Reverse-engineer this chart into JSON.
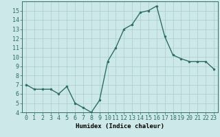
{
  "x": [
    0,
    1,
    2,
    3,
    4,
    5,
    6,
    7,
    8,
    9,
    10,
    11,
    12,
    13,
    14,
    15,
    16,
    17,
    18,
    19,
    20,
    21,
    22,
    23
  ],
  "y": [
    7.0,
    6.5,
    6.5,
    6.5,
    6.0,
    6.8,
    5.0,
    4.5,
    4.0,
    5.3,
    9.5,
    11.0,
    13.0,
    13.5,
    14.8,
    15.0,
    15.5,
    12.2,
    10.2,
    9.8,
    9.5,
    9.5,
    9.5,
    8.7
  ],
  "line_color": "#2e6e5e",
  "marker": "o",
  "markersize": 2.0,
  "linewidth": 1.0,
  "bg_color": "#cce8e8",
  "grid_color": "#aacccc",
  "xlabel": "Humidex (Indice chaleur)",
  "xlim": [
    -0.5,
    23.5
  ],
  "ylim": [
    4,
    16
  ],
  "yticks": [
    4,
    5,
    6,
    7,
    8,
    9,
    10,
    11,
    12,
    13,
    14,
    15
  ],
  "xticks": [
    0,
    1,
    2,
    3,
    4,
    5,
    6,
    7,
    8,
    9,
    10,
    11,
    12,
    13,
    14,
    15,
    16,
    17,
    18,
    19,
    20,
    21,
    22,
    23
  ],
  "axis_fontsize": 6.5,
  "tick_fontsize": 6.0
}
